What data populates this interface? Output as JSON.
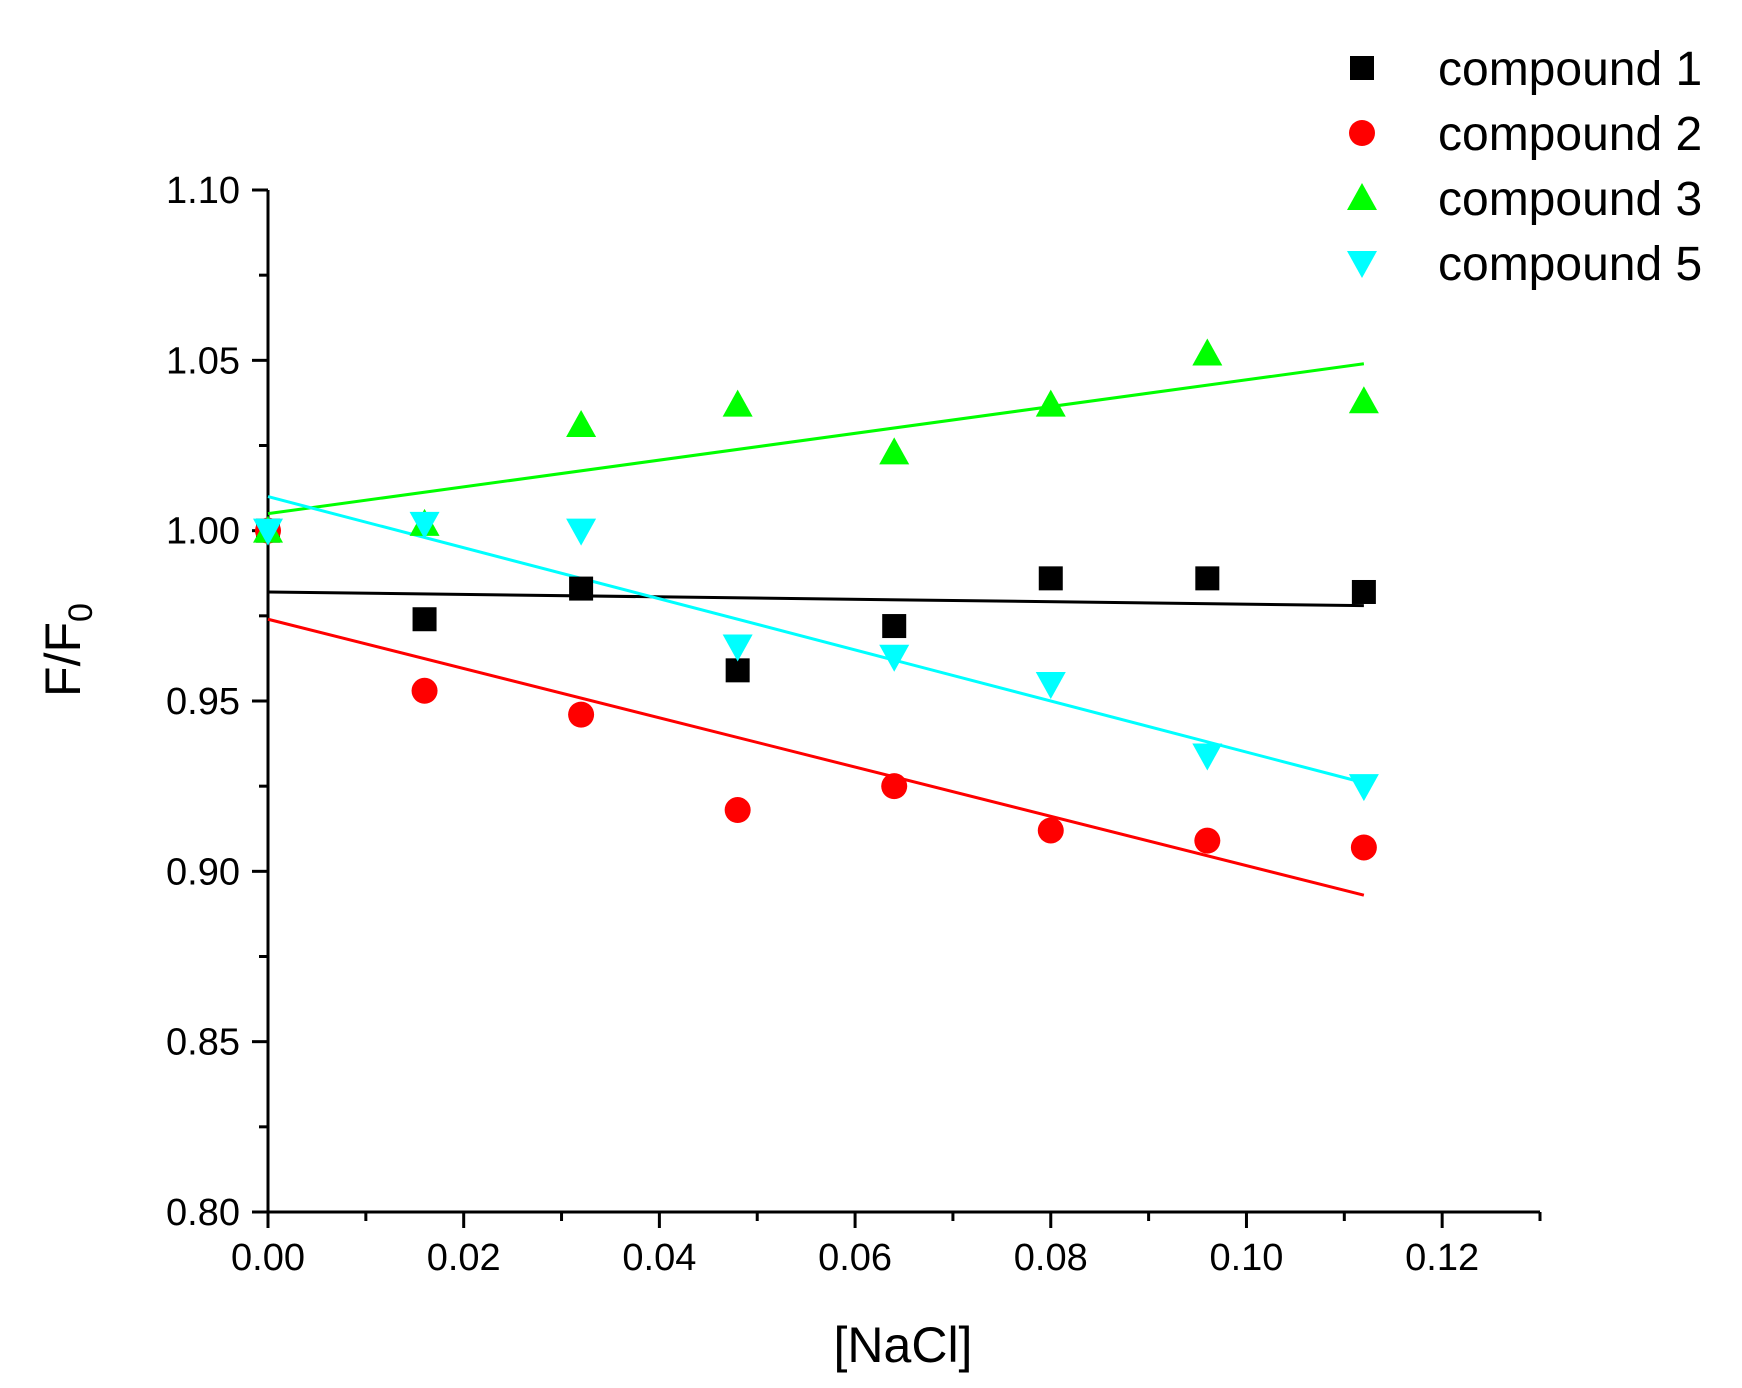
{
  "chart_data": {
    "type": "scatter",
    "title": "",
    "xlabel": "[NaCl]",
    "ylabel": {
      "main": "F/F",
      "subscript": "0"
    },
    "xlim": [
      0,
      0.13
    ],
    "ylim": [
      0.8,
      1.1
    ],
    "x_ticks": [
      "0.00",
      "0.02",
      "0.04",
      "0.06",
      "0.08",
      "0.10",
      "0.12"
    ],
    "y_ticks": [
      "0.80",
      "0.85",
      "0.90",
      "0.95",
      "1.00",
      "1.05",
      "1.10"
    ],
    "x_tick_values": [
      0,
      0.02,
      0.04,
      0.06,
      0.08,
      0.1,
      0.12
    ],
    "y_tick_values": [
      0.8,
      0.85,
      0.9,
      0.95,
      1.0,
      1.05,
      1.1
    ],
    "grid": false,
    "legend_position": "top-right",
    "x": [
      0,
      0.016,
      0.032,
      0.048,
      0.064,
      0.08,
      0.096,
      0.112
    ],
    "series": [
      {
        "name": "compound 1",
        "marker": "square",
        "color": "#000000",
        "values": [
          1.0,
          0.974,
          0.983,
          0.959,
          0.972,
          0.986,
          0.986,
          0.982
        ],
        "fit": [
          0.982,
          0.978
        ]
      },
      {
        "name": "compound 2",
        "marker": "circle",
        "color": "#ff0000",
        "values": [
          1.0,
          0.953,
          0.946,
          0.918,
          0.925,
          0.912,
          0.909,
          0.907
        ],
        "fit": [
          0.974,
          0.893
        ]
      },
      {
        "name": "compound 3",
        "marker": "triangle-up",
        "color": "#00ff00",
        "values": [
          1.0,
          1.002,
          1.031,
          1.037,
          1.023,
          1.037,
          1.052,
          1.038
        ],
        "fit": [
          1.005,
          1.049
        ]
      },
      {
        "name": "compound 5",
        "marker": "triangle-down",
        "color": "#00ffff",
        "values": [
          1.0,
          1.002,
          1.0,
          0.966,
          0.963,
          0.955,
          0.934,
          0.925
        ],
        "fit": [
          1.01,
          0.926
        ]
      }
    ]
  }
}
